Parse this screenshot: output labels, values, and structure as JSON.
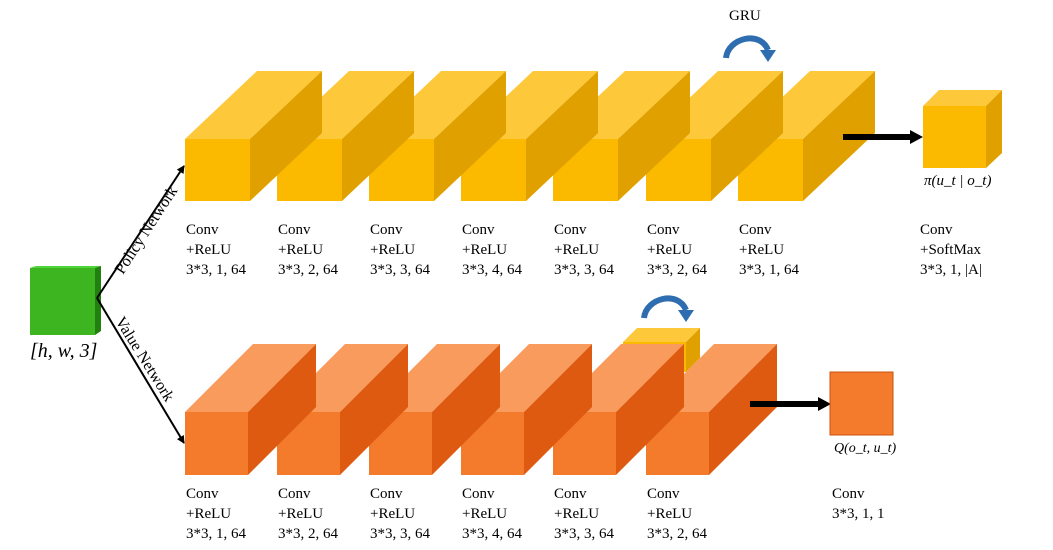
{
  "input": {
    "label": "[h, w, 3]",
    "color": "#3cb521"
  },
  "branches": {
    "policy": "Policy Network",
    "value": "Value Network"
  },
  "policy": {
    "colors": {
      "front": "#fbb900",
      "top": "#fdc83a",
      "side": "#e0a000"
    },
    "gru_label": "GRU",
    "layers": [
      {
        "l1": "Conv",
        "l2": "+ReLU",
        "l3": "3*3, 1, 64"
      },
      {
        "l1": "Conv",
        "l2": "+ReLU",
        "l3": "3*3, 2, 64"
      },
      {
        "l1": "Conv",
        "l2": "+ReLU",
        "l3": "3*3, 3, 64"
      },
      {
        "l1": "Conv",
        "l2": "+ReLU",
        "l3": "3*3, 4, 64"
      },
      {
        "l1": "Conv",
        "l2": "+ReLU",
        "l3": "3*3, 3, 64"
      },
      {
        "l1": "Conv",
        "l2": "+ReLU",
        "l3": "3*3, 2, 64"
      },
      {
        "l1": "Conv",
        "l2": "+ReLU",
        "l3": "3*3, 1, 64"
      }
    ],
    "output": {
      "l1": "Conv",
      "l2": "+SoftMax",
      "l3": "3*3, 1, |A|",
      "math": "π(u_t | o_t)"
    }
  },
  "value": {
    "colors": {
      "front": "#f47a2c",
      "top": "#fa9b5e",
      "side": "#dd5a10"
    },
    "layers": [
      {
        "l1": "Conv",
        "l2": "+ReLU",
        "l3": "3*3, 1, 64"
      },
      {
        "l1": "Conv",
        "l2": "+ReLU",
        "l3": "3*3, 2, 64"
      },
      {
        "l1": "Conv",
        "l2": "+ReLU",
        "l3": "3*3, 3, 64"
      },
      {
        "l1": "Conv",
        "l2": "+ReLU",
        "l3": "3*3, 4, 64"
      },
      {
        "l1": "Conv",
        "l2": "+ReLU",
        "l3": "3*3, 3, 64"
      },
      {
        "l1": "Conv",
        "l2": "+ReLU",
        "l3": "3*3, 2, 64"
      }
    ],
    "output": {
      "l1": "Conv",
      "l2": "3*3, 1, 1",
      "math": "Q(o_t, u_t)"
    }
  },
  "arrow_color": "#2e6db0"
}
